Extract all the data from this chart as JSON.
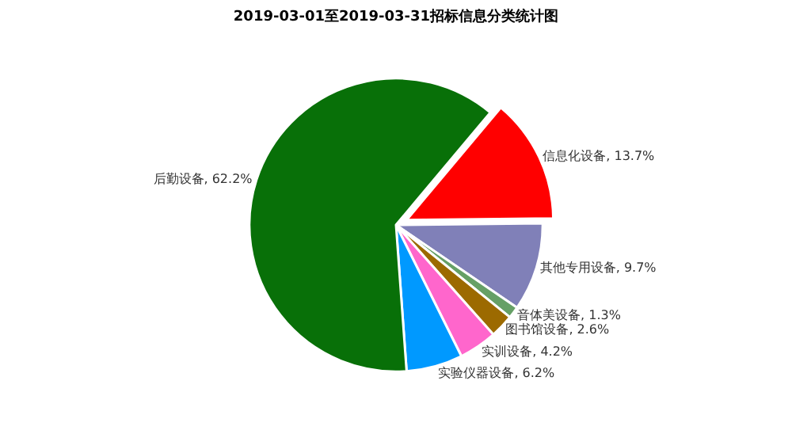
{
  "chart_data": {
    "type": "pie",
    "title": "2019-03-01至2019-03-31招标信息分类统计图",
    "categories": [
      "信息化设备",
      "其他专用设备",
      "音体美设备",
      "图书馆设备",
      "实训设备",
      "实验仪器设备",
      "后勤设备"
    ],
    "values": [
      13.7,
      9.7,
      1.3,
      2.6,
      4.2,
      6.2,
      62.2
    ],
    "colors": [
      "#ff0000",
      "#8080b8",
      "#66a066",
      "#9c6a00",
      "#ff66cc",
      "#0099ff",
      "#087008"
    ],
    "value_labels": [
      "13.7%",
      "9.7%",
      "1.3%",
      "2.6%",
      "4.2%",
      "6.2%",
      "62.2%"
    ],
    "legend": false
  }
}
